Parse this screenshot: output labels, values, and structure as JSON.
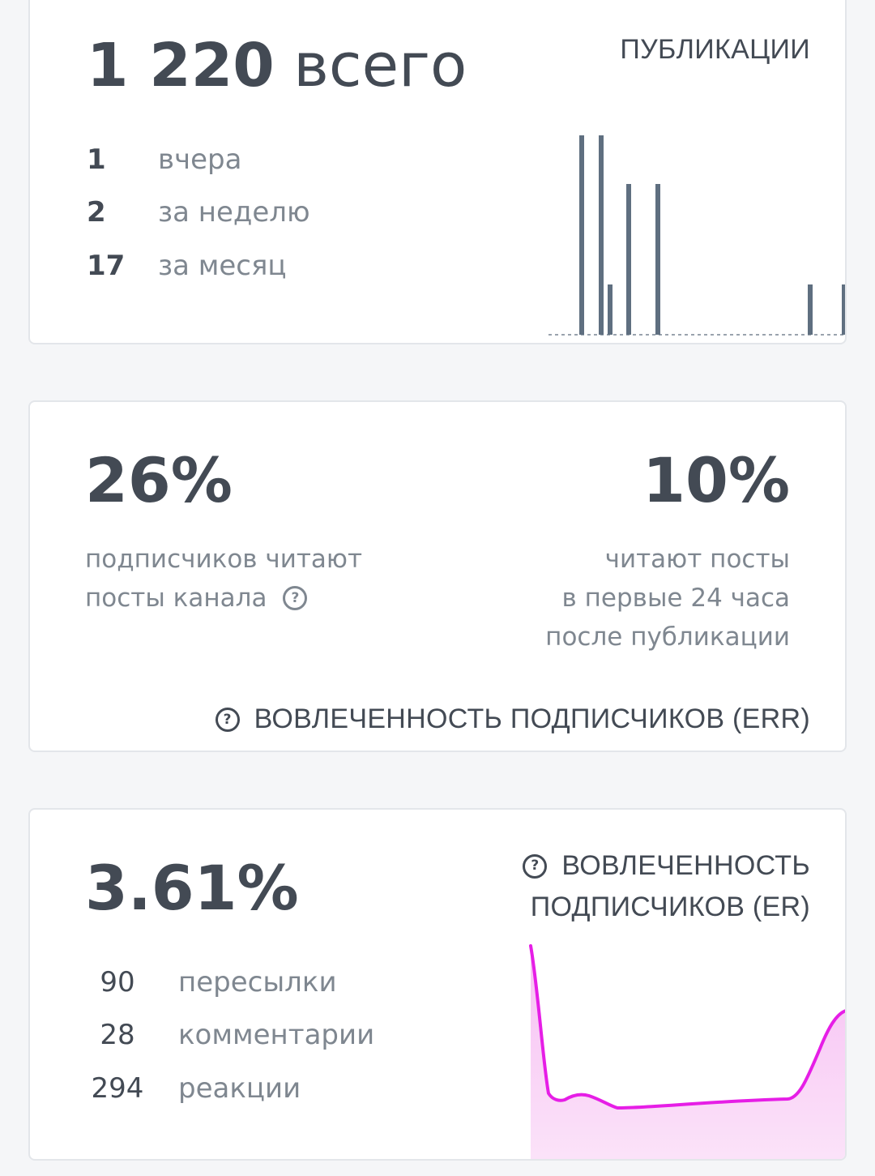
{
  "publications": {
    "total_number": "1 220",
    "total_word": "всего",
    "title": "ПУБЛИКАЦИИ",
    "stats": [
      {
        "value": "1",
        "label": "вчера"
      },
      {
        "value": "2",
        "label": "за неделю"
      },
      {
        "value": "17",
        "label": "за месяц"
      }
    ],
    "bar_color": "#5f6f80"
  },
  "err": {
    "left_value": "26%",
    "left_desc_line1": "подписчиков читают",
    "left_desc_line2": "посты канала",
    "right_value": "10%",
    "right_desc_line1": "читают посты",
    "right_desc_line2": "в первые 24 часа",
    "right_desc_line3": "после публикации",
    "footer_label": "ВОВЛЕЧЕННОСТЬ ПОДПИСЧИКОВ (ERR)"
  },
  "er": {
    "value": "3.61%",
    "title_line1": "ВОВЛЕЧЕННОСТЬ",
    "title_line2": "ПОДПИСЧИКОВ (ER)",
    "stats": [
      {
        "value": "90",
        "label": "пересылки"
      },
      {
        "value": "28",
        "label": "комментарии"
      },
      {
        "value": "294",
        "label": "реакции"
      }
    ],
    "line_color": "#e61ee6",
    "fill_color": "#f9c8f5"
  },
  "icons": {
    "help": "question-circle-icon"
  }
}
